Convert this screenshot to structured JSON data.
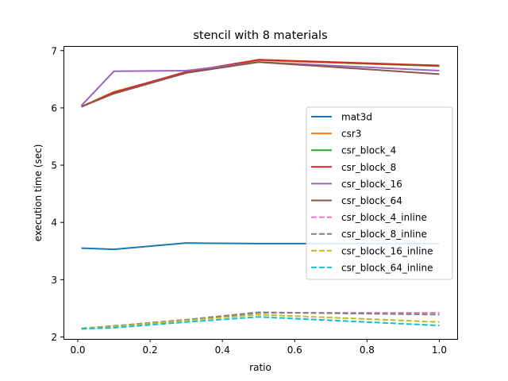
{
  "chart_data": {
    "type": "line",
    "title": "stencil with 8 materials",
    "xlabel": "ratio",
    "ylabel": "execution time (sec)",
    "xlim": [
      -0.0395,
      1.0495
    ],
    "ylim": [
      1.965,
      7.08
    ],
    "x_ticks": [
      0.0,
      0.2,
      0.4,
      0.6,
      0.8,
      1.0
    ],
    "x_tick_labels": [
      "0.0",
      "0.2",
      "0.4",
      "0.6",
      "0.8",
      "1.0"
    ],
    "y_ticks": [
      2,
      3,
      4,
      5,
      6,
      7
    ],
    "y_tick_labels": [
      "2",
      "3",
      "4",
      "5",
      "6",
      "7"
    ],
    "grid": false,
    "legend_position": "center-right",
    "x": [
      0.01,
      0.1,
      0.3,
      0.5,
      1.0
    ],
    "series": [
      {
        "name": "mat3d",
        "color": "#1f77b4",
        "dash": "solid",
        "values": [
          3.55,
          3.53,
          3.64,
          3.63,
          3.63
        ]
      },
      {
        "name": "csr3",
        "color": "#ff7f0e",
        "dash": "solid",
        "values": [
          6.02,
          6.28,
          6.62,
          6.83,
          6.73
        ]
      },
      {
        "name": "csr_block_4",
        "color": "#2ca02c",
        "dash": "solid",
        "values": [
          6.02,
          6.27,
          6.62,
          6.84,
          6.73
        ]
      },
      {
        "name": "csr_block_8",
        "color": "#d62728",
        "dash": "solid",
        "values": [
          6.02,
          6.27,
          6.63,
          6.84,
          6.74
        ]
      },
      {
        "name": "csr_block_16",
        "color": "#9467bd",
        "dash": "solid",
        "values": [
          6.04,
          6.64,
          6.65,
          6.8,
          6.65
        ]
      },
      {
        "name": "csr_block_64",
        "color": "#8c564b",
        "dash": "solid",
        "values": [
          6.02,
          6.25,
          6.61,
          6.8,
          6.59
        ]
      },
      {
        "name": "csr_block_4_inline",
        "color": "#e377c2",
        "dash": "dashed",
        "values": [
          2.15,
          2.19,
          2.3,
          2.42,
          2.42
        ]
      },
      {
        "name": "csr_block_8_inline",
        "color": "#7f7f7f",
        "dash": "dashed",
        "values": [
          2.15,
          2.19,
          2.3,
          2.43,
          2.39
        ]
      },
      {
        "name": "csr_block_16_inline",
        "color": "#bcbd22",
        "dash": "dashed",
        "values": [
          2.15,
          2.18,
          2.29,
          2.39,
          2.26
        ]
      },
      {
        "name": "csr_block_64_inline",
        "color": "#17becf",
        "dash": "dashed",
        "values": [
          2.14,
          2.16,
          2.26,
          2.35,
          2.2
        ]
      }
    ]
  }
}
